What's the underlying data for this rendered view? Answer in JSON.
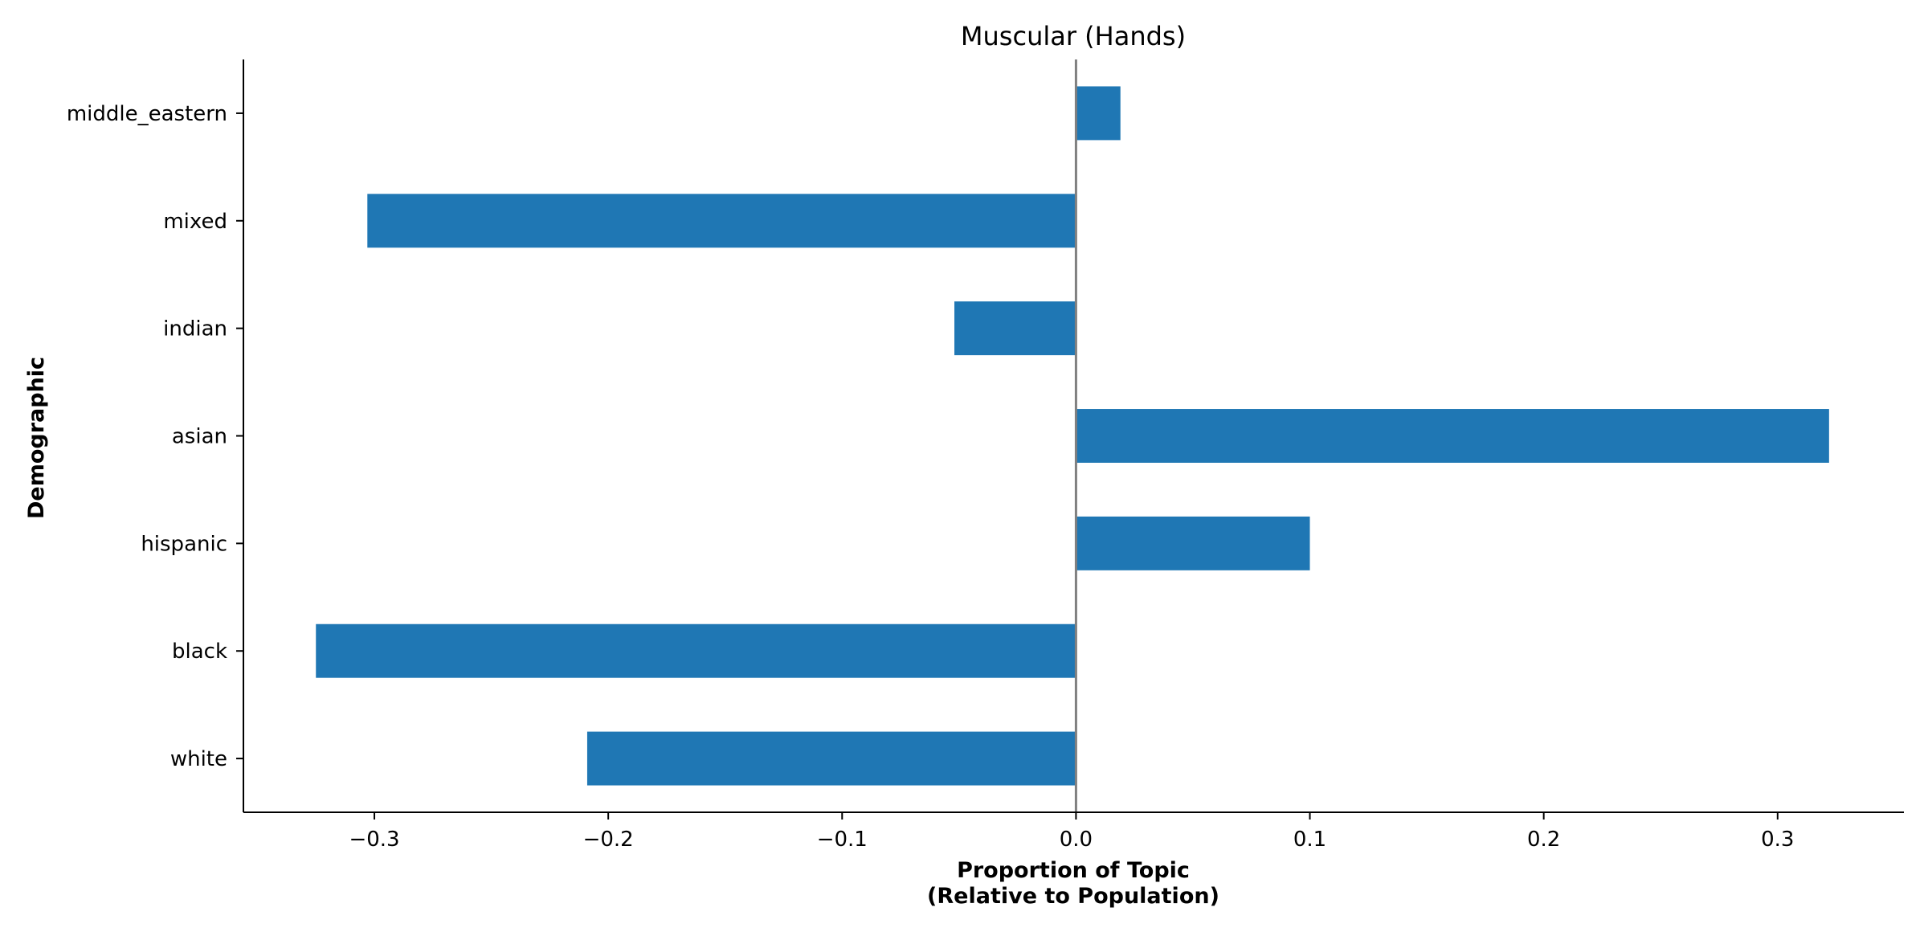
{
  "chart_data": {
    "type": "bar",
    "orientation": "horizontal",
    "title": "Muscular (Hands)",
    "xlabel_lines": [
      "Proportion of Topic",
      "(Relative to Population)"
    ],
    "ylabel": "Demographic",
    "categories": [
      "white",
      "black",
      "hispanic",
      "asian",
      "indian",
      "mixed",
      "middle_eastern"
    ],
    "values": [
      -0.209,
      -0.325,
      0.1,
      0.322,
      -0.052,
      -0.303,
      0.019
    ],
    "xlim": [
      -0.356,
      0.354
    ],
    "xticks": [
      -0.3,
      -0.2,
      -0.1,
      0.0,
      0.1,
      0.2,
      0.3
    ],
    "xtick_labels": [
      "−0.3",
      "−0.2",
      "−0.1",
      "0.0",
      "0.1",
      "0.2",
      "0.3"
    ],
    "bar_color": "#1f77b4",
    "zero_line_color": "#808080",
    "grid": false,
    "legend": "none"
  }
}
